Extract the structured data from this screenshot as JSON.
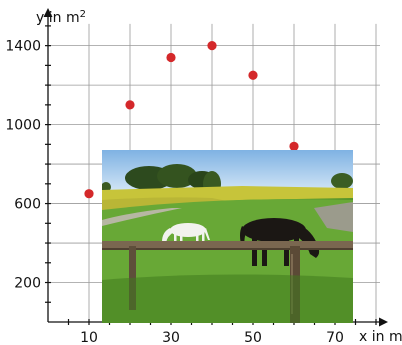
{
  "chart_data": {
    "type": "scatter",
    "title": "",
    "xlabel": "x in m",
    "ylabel_prefix": "y in m",
    "ylabel_sup": "2",
    "xlim": [
      0,
      80
    ],
    "ylim": [
      0,
      1500
    ],
    "xticks": [
      10,
      30,
      50,
      70
    ],
    "xtick_labels": [
      "10",
      "30",
      "50",
      "70"
    ],
    "yticks": [
      200,
      600,
      1000,
      1400
    ],
    "ytick_labels": [
      "200",
      "600",
      "1000",
      "1400"
    ],
    "grid": true,
    "points": [
      {
        "x": 10,
        "y": 650
      },
      {
        "x": 20,
        "y": 1100
      },
      {
        "x": 30,
        "y": 1340
      },
      {
        "x": 40,
        "y": 1400
      },
      {
        "x": 50,
        "y": 1250
      },
      {
        "x": 60,
        "y": 890
      }
    ],
    "colors": {
      "point": "#d4282a",
      "grid": "#9a9a9a",
      "axis": "#111111"
    }
  },
  "photo": {
    "subject": "horses grazing in a fenced pasture"
  }
}
